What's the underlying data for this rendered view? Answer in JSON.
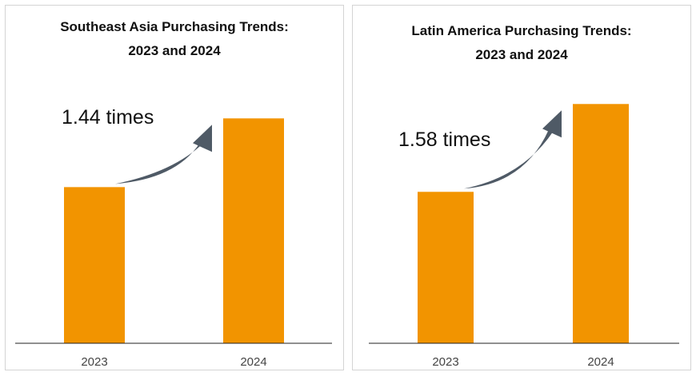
{
  "colors": {
    "bar": "#f29400",
    "arrow": "#4f5a66",
    "axis": "#222222",
    "text": "#111111",
    "tick_text": "#444444"
  },
  "chart_data": [
    {
      "type": "bar",
      "title": [
        "Southeast Asia Purchasing Trends:",
        "2023 and 2024"
      ],
      "categories": [
        "2023",
        "2024"
      ],
      "values": [
        1.0,
        1.44
      ],
      "ylim": [
        0,
        1.6
      ],
      "grid": false,
      "legend": "none",
      "annotation": "1.44 times",
      "annotation_icon": "curved-arrow-icon"
    },
    {
      "type": "bar",
      "title": [
        "Latin America Purchasing Trends:",
        "2023 and 2024"
      ],
      "categories": [
        "2023",
        "2024"
      ],
      "values": [
        1.0,
        1.58
      ],
      "ylim": [
        0,
        1.65
      ],
      "grid": false,
      "legend": "none",
      "annotation": "1.58 times",
      "annotation_icon": "curved-arrow-icon"
    }
  ]
}
